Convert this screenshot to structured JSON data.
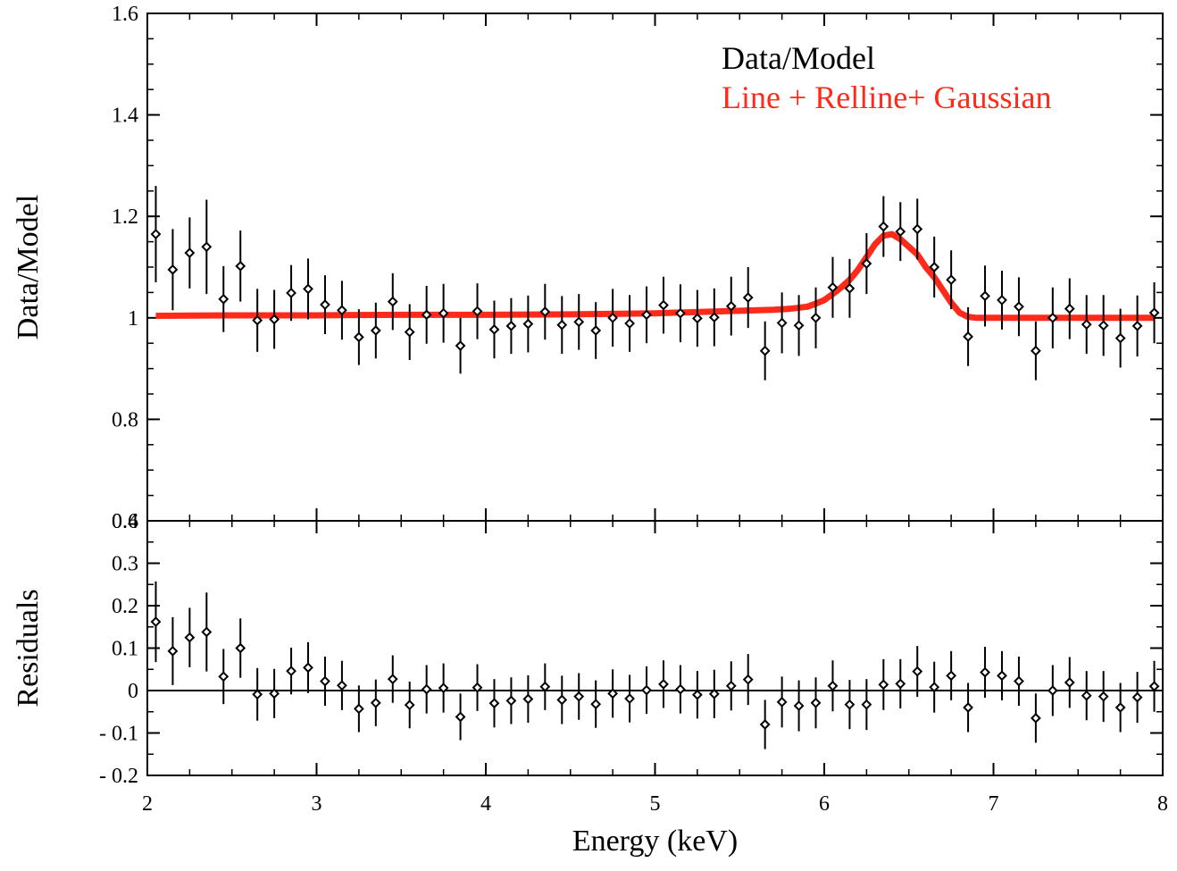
{
  "chart_data": [
    {
      "type": "scatter",
      "panel": "top",
      "title": "",
      "xlabel": "",
      "ylabel": "Data/Model",
      "xlim": [
        2,
        8
      ],
      "ylim": [
        0.6,
        1.6
      ],
      "yticks": [
        0.6,
        0.8,
        1.0,
        1.2,
        1.4,
        1.6
      ],
      "ytick_labels": [
        "0.6",
        "0.8",
        "1",
        "1.2",
        "1.4",
        "1.6"
      ],
      "legend": {
        "placement": "top-right",
        "entries": [
          {
            "label": "Data/Model",
            "color": "#000000"
          },
          {
            "label": "Line + Relline+ Gaussian",
            "color": "#ff2a1a"
          }
        ]
      },
      "series": [
        {
          "name": "Data/Model",
          "kind": "points-with-errorbars",
          "color": "#000000",
          "x": [
            2.05,
            2.15,
            2.25,
            2.35,
            2.45,
            2.55,
            2.65,
            2.75,
            2.85,
            2.95,
            3.05,
            3.15,
            3.25,
            3.35,
            3.45,
            3.55,
            3.65,
            3.75,
            3.85,
            3.95,
            4.05,
            4.15,
            4.25,
            4.35,
            4.45,
            4.55,
            4.65,
            4.75,
            4.85,
            4.95,
            5.05,
            5.15,
            5.25,
            5.35,
            5.45,
            5.55,
            5.65,
            5.75,
            5.85,
            5.95,
            6.05,
            6.15,
            6.25,
            6.35,
            6.45,
            6.55,
            6.65,
            6.75,
            6.85,
            6.95,
            7.05,
            7.15,
            7.25,
            7.35,
            7.45,
            7.55,
            7.65,
            7.75,
            7.85,
            7.95
          ],
          "y": [
            1.165,
            1.095,
            1.128,
            1.14,
            1.037,
            1.102,
            0.995,
            0.997,
            1.049,
            1.057,
            1.026,
            1.015,
            0.962,
            0.975,
            1.032,
            0.972,
            1.006,
            1.009,
            0.945,
            1.013,
            0.977,
            0.984,
            0.988,
            1.012,
            0.986,
            0.992,
            0.975,
            1.0,
            0.989,
            1.006,
            1.025,
            1.009,
            0.999,
            1.001,
            1.023,
            1.04,
            0.935,
            0.99,
            0.985,
            1.0,
            1.06,
            1.058,
            1.107,
            1.18,
            1.17,
            1.175,
            1.1,
            1.075,
            0.963,
            1.043,
            1.035,
            1.022,
            0.935,
            1.0,
            1.018,
            0.987,
            0.985,
            0.96,
            0.984,
            1.01
          ],
          "yerr": [
            0.095,
            0.08,
            0.07,
            0.093,
            0.065,
            0.07,
            0.062,
            0.058,
            0.055,
            0.06,
            0.058,
            0.058,
            0.055,
            0.055,
            0.056,
            0.055,
            0.057,
            0.058,
            0.055,
            0.055,
            0.057,
            0.055,
            0.056,
            0.055,
            0.057,
            0.055,
            0.056,
            0.057,
            0.056,
            0.056,
            0.056,
            0.057,
            0.056,
            0.057,
            0.058,
            0.06,
            0.058,
            0.06,
            0.06,
            0.06,
            0.06,
            0.058,
            0.06,
            0.06,
            0.058,
            0.06,
            0.06,
            0.058,
            0.058,
            0.06,
            0.058,
            0.058,
            0.058,
            0.06,
            0.06,
            0.058,
            0.06,
            0.058,
            0.06,
            0.06
          ]
        },
        {
          "name": "Line + Relline+ Gaussian",
          "kind": "line",
          "color": "#ff2a1a",
          "x": [
            2.05,
            2.5,
            3.0,
            3.5,
            4.0,
            4.5,
            5.0,
            5.3,
            5.5,
            5.7,
            5.8,
            5.9,
            5.95,
            6.0,
            6.05,
            6.1,
            6.15,
            6.2,
            6.25,
            6.3,
            6.35,
            6.4,
            6.45,
            6.5,
            6.55,
            6.6,
            6.65,
            6.7,
            6.75,
            6.8,
            6.85,
            6.9,
            7.0,
            7.5,
            7.95
          ],
          "y": [
            1.004,
            1.005,
            1.005,
            1.006,
            1.006,
            1.007,
            1.009,
            1.012,
            1.014,
            1.016,
            1.018,
            1.022,
            1.028,
            1.035,
            1.047,
            1.06,
            1.075,
            1.095,
            1.12,
            1.145,
            1.162,
            1.165,
            1.155,
            1.14,
            1.125,
            1.1,
            1.08,
            1.055,
            1.03,
            1.01,
            1.002,
            1.0,
            1.0,
            1.0,
            1.0
          ]
        }
      ]
    },
    {
      "type": "scatter",
      "panel": "bottom",
      "title": "",
      "xlabel": "Energy (keV)",
      "ylabel": "Residuals",
      "xlim": [
        2,
        8
      ],
      "ylim": [
        -0.2,
        0.4
      ],
      "xticks": [
        2,
        3,
        4,
        5,
        6,
        7,
        8
      ],
      "xtick_labels": [
        "2",
        "3",
        "4",
        "5",
        "6",
        "7",
        "8"
      ],
      "yticks": [
        -0.2,
        -0.1,
        0.0,
        0.1,
        0.2,
        0.3,
        0.4
      ],
      "ytick_labels": [
        "- 0.2",
        "- 0.1",
        "0",
        "0.1",
        "0.2",
        "0.3",
        "0.4"
      ],
      "zero_line": 0,
      "series": [
        {
          "name": "Residuals",
          "kind": "points-with-errorbars",
          "color": "#000000",
          "x": [
            2.05,
            2.15,
            2.25,
            2.35,
            2.45,
            2.55,
            2.65,
            2.75,
            2.85,
            2.95,
            3.05,
            3.15,
            3.25,
            3.35,
            3.45,
            3.55,
            3.65,
            3.75,
            3.85,
            3.95,
            4.05,
            4.15,
            4.25,
            4.35,
            4.45,
            4.55,
            4.65,
            4.75,
            4.85,
            4.95,
            5.05,
            5.15,
            5.25,
            5.35,
            5.45,
            5.55,
            5.65,
            5.75,
            5.85,
            5.95,
            6.05,
            6.15,
            6.25,
            6.35,
            6.45,
            6.55,
            6.65,
            6.75,
            6.85,
            6.95,
            7.05,
            7.15,
            7.25,
            7.35,
            7.45,
            7.55,
            7.65,
            7.75,
            7.85,
            7.95
          ],
          "y": [
            0.162,
            0.093,
            0.125,
            0.138,
            0.033,
            0.1,
            -0.009,
            -0.007,
            0.046,
            0.054,
            0.022,
            0.012,
            -0.043,
            -0.029,
            0.027,
            -0.034,
            0.003,
            0.006,
            -0.062,
            0.007,
            -0.03,
            -0.024,
            -0.02,
            0.009,
            -0.022,
            -0.014,
            -0.032,
            -0.007,
            -0.019,
            0.001,
            0.015,
            0.003,
            -0.01,
            -0.008,
            0.011,
            0.026,
            -0.08,
            -0.027,
            -0.036,
            -0.029,
            0.011,
            -0.033,
            -0.033,
            0.014,
            0.016,
            0.045,
            0.008,
            0.035,
            -0.04,
            0.043,
            0.035,
            0.022,
            -0.065,
            0.0,
            0.019,
            -0.012,
            -0.014,
            -0.04,
            -0.016,
            0.01
          ],
          "yerr": [
            0.095,
            0.08,
            0.07,
            0.093,
            0.065,
            0.07,
            0.062,
            0.058,
            0.055,
            0.06,
            0.058,
            0.058,
            0.055,
            0.055,
            0.056,
            0.055,
            0.057,
            0.058,
            0.055,
            0.055,
            0.057,
            0.055,
            0.056,
            0.055,
            0.057,
            0.055,
            0.056,
            0.057,
            0.056,
            0.056,
            0.056,
            0.057,
            0.056,
            0.057,
            0.058,
            0.06,
            0.058,
            0.06,
            0.06,
            0.06,
            0.06,
            0.058,
            0.06,
            0.06,
            0.058,
            0.06,
            0.06,
            0.058,
            0.058,
            0.06,
            0.058,
            0.058,
            0.058,
            0.06,
            0.06,
            0.058,
            0.06,
            0.058,
            0.06,
            0.06
          ]
        }
      ]
    }
  ]
}
